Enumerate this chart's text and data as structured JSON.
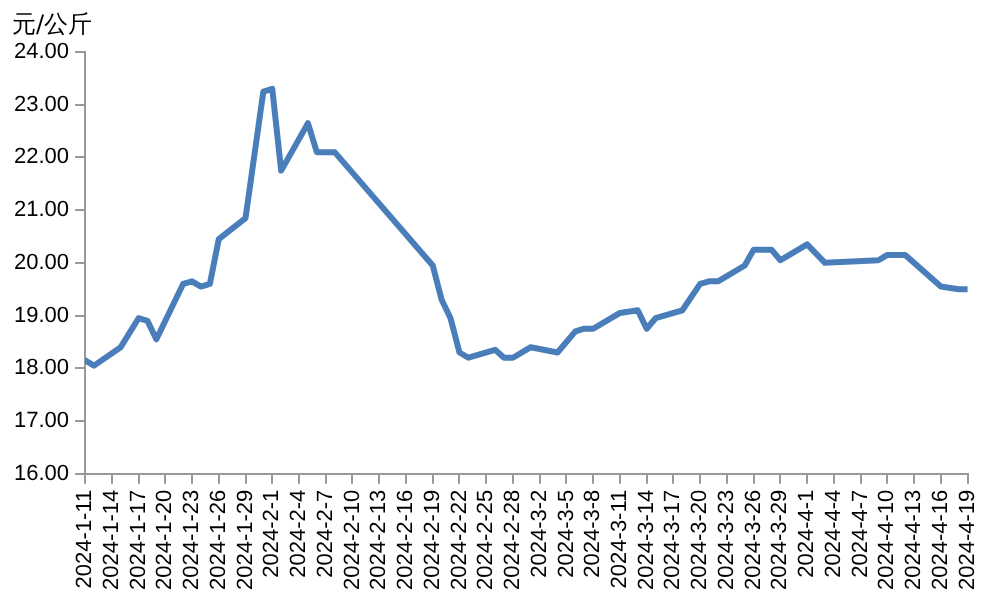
{
  "chart_data": {
    "type": "line",
    "ylabel": "元/公斤",
    "x": [
      "2024-01-11",
      "2024-01-12",
      "2024-01-15",
      "2024-01-17",
      "2024-01-18",
      "2024-01-19",
      "2024-01-22",
      "2024-01-23",
      "2024-01-24",
      "2024-01-25",
      "2024-01-26",
      "2024-01-29",
      "2024-01-31",
      "2024-02-01",
      "2024-02-02",
      "2024-02-05",
      "2024-02-06",
      "2024-02-08",
      "2024-02-19",
      "2024-02-20",
      "2024-02-21",
      "2024-02-22",
      "2024-02-23",
      "2024-02-26",
      "2024-02-27",
      "2024-02-28",
      "2024-03-01",
      "2024-03-04",
      "2024-03-06",
      "2024-03-07",
      "2024-03-08",
      "2024-03-11",
      "2024-03-13",
      "2024-03-14",
      "2024-03-15",
      "2024-03-18",
      "2024-03-20",
      "2024-03-21",
      "2024-03-22",
      "2024-03-25",
      "2024-03-26",
      "2024-03-28",
      "2024-03-29",
      "2024-04-01",
      "2024-04-03",
      "2024-04-09",
      "2024-04-10",
      "2024-04-12",
      "2024-04-16",
      "2024-04-18",
      "2024-04-19"
    ],
    "series": [
      {
        "color": "#4a7ebb",
        "values": [
          18.15,
          18.05,
          18.4,
          18.95,
          18.9,
          18.55,
          19.6,
          19.65,
          19.55,
          19.6,
          20.45,
          20.85,
          23.25,
          23.3,
          21.75,
          22.65,
          22.1,
          22.1,
          19.95,
          19.3,
          18.95,
          18.3,
          18.2,
          18.35,
          18.2,
          18.2,
          18.4,
          18.3,
          18.7,
          18.75,
          18.75,
          19.05,
          19.1,
          18.75,
          18.95,
          19.1,
          19.6,
          19.65,
          19.65,
          19.95,
          20.25,
          20.25,
          20.05,
          20.35,
          20.0,
          20.05,
          20.15,
          20.15,
          19.55,
          19.5,
          19.5
        ]
      }
    ],
    "xlim": [
      "2024-01-11",
      "2024-04-19"
    ],
    "xticks": [
      {
        "value": "2024-01-11",
        "label": "2024-1-11"
      },
      {
        "value": "2024-01-14",
        "label": "2024-1-14"
      },
      {
        "value": "2024-01-17",
        "label": "2024-1-17"
      },
      {
        "value": "2024-01-20",
        "label": "2024-1-20"
      },
      {
        "value": "2024-01-23",
        "label": "2024-1-23"
      },
      {
        "value": "2024-01-26",
        "label": "2024-1-26"
      },
      {
        "value": "2024-01-29",
        "label": "2024-1-29"
      },
      {
        "value": "2024-02-01",
        "label": "2024-2-1"
      },
      {
        "value": "2024-02-04",
        "label": "2024-2-4"
      },
      {
        "value": "2024-02-07",
        "label": "2024-2-7"
      },
      {
        "value": "2024-02-10",
        "label": "2024-2-10"
      },
      {
        "value": "2024-02-13",
        "label": "2024-2-13"
      },
      {
        "value": "2024-02-16",
        "label": "2024-2-16"
      },
      {
        "value": "2024-02-19",
        "label": "2024-2-19"
      },
      {
        "value": "2024-02-22",
        "label": "2024-2-22"
      },
      {
        "value": "2024-02-25",
        "label": "2024-2-25"
      },
      {
        "value": "2024-02-28",
        "label": "2024-2-28"
      },
      {
        "value": "2024-03-02",
        "label": "2024-3-2"
      },
      {
        "value": "2024-03-05",
        "label": "2024-3-5"
      },
      {
        "value": "2024-03-08",
        "label": "2024-3-8"
      },
      {
        "value": "2024-03-11",
        "label": "2024-3-11"
      },
      {
        "value": "2024-03-14",
        "label": "2024-3-14"
      },
      {
        "value": "2024-03-17",
        "label": "2024-3-17"
      },
      {
        "value": "2024-03-20",
        "label": "2024-3-20"
      },
      {
        "value": "2024-03-23",
        "label": "2024-3-23"
      },
      {
        "value": "2024-03-26",
        "label": "2024-3-26"
      },
      {
        "value": "2024-03-29",
        "label": "2024-3-29"
      },
      {
        "value": "2024-04-01",
        "label": "2024-4-1"
      },
      {
        "value": "2024-04-04",
        "label": "2024-4-4"
      },
      {
        "value": "2024-04-07",
        "label": "2024-4-7"
      },
      {
        "value": "2024-04-10",
        "label": "2024-4-10"
      },
      {
        "value": "2024-04-13",
        "label": "2024-4-13"
      },
      {
        "value": "2024-04-16",
        "label": "2024-4-16"
      },
      {
        "value": "2024-04-19",
        "label": "2024-4-19"
      }
    ],
    "ylim": [
      16,
      24
    ],
    "yticks": [
      {
        "value": 16,
        "label": "16.00"
      },
      {
        "value": 17,
        "label": "17.00"
      },
      {
        "value": 18,
        "label": "18.00"
      },
      {
        "value": 19,
        "label": "19.00"
      },
      {
        "value": 20,
        "label": "20.00"
      },
      {
        "value": 21,
        "label": "21.00"
      },
      {
        "value": 22,
        "label": "22.00"
      },
      {
        "value": 23,
        "label": "23.00"
      },
      {
        "value": 24,
        "label": "24.00"
      }
    ],
    "grid": false,
    "legend": false,
    "marker": "none",
    "line_style": "solid"
  }
}
